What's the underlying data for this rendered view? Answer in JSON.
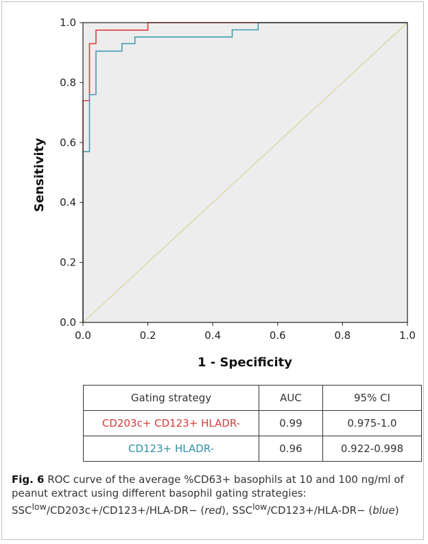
{
  "chart_data": {
    "type": "line",
    "title": "",
    "xlabel": "1 - Specificity",
    "ylabel": "Sensitivity",
    "xlim": [
      0,
      1
    ],
    "ylim": [
      0,
      1
    ],
    "xticks": [
      "0.0",
      "0.2",
      "0.4",
      "0.6",
      "0.8",
      "1.0"
    ],
    "yticks": [
      "0.0",
      "0.2",
      "0.4",
      "0.6",
      "0.8",
      "1.0"
    ],
    "grid": false,
    "plot_background": "#ededed",
    "series": [
      {
        "color": "#e23b3b",
        "x": [
          0,
          0,
          0.02,
          0.02,
          0.04,
          0.04,
          0.2,
          0.2,
          1.0
        ],
        "y": [
          0,
          0.74,
          0.74,
          0.93,
          0.93,
          0.975,
          0.975,
          1.0,
          1.0
        ]
      },
      {
        "color": "#3f9bb2",
        "x": [
          0,
          0,
          0.02,
          0.02,
          0.04,
          0.04,
          0.12,
          0.12,
          0.16,
          0.16,
          0.46,
          0.46,
          0.54,
          0.54,
          1.0
        ],
        "y": [
          0,
          0.57,
          0.57,
          0.76,
          0.76,
          0.905,
          0.905,
          0.93,
          0.93,
          0.952,
          0.952,
          0.976,
          0.976,
          1.0,
          1.0
        ]
      },
      {
        "color": "#d8d49a",
        "x": [
          0,
          1
        ],
        "y": [
          0,
          1
        ]
      }
    ]
  },
  "table": {
    "headers": [
      "Gating strategy",
      "AUC",
      "95% CI"
    ],
    "rows": [
      {
        "strategy": "CD203c+ CD123+ HLADR-",
        "auc": "0.99",
        "ci": "0.975-1.0",
        "color": "#d63a3a"
      },
      {
        "strategy": "CD123+ HLADR-",
        "auc": "0.96",
        "ci": "0.922-0.998",
        "color": "#2f8ea5"
      }
    ]
  },
  "caption": {
    "label": "Fig. 6",
    "text_a": " ROC curve of the average %CD63+ basophils at 10 and 100 ng/ml of peanut extract using different basophil gating strategies: SSC",
    "sup1": "low",
    "text_b": "/CD203c+/CD123+/HLA-DR− (",
    "red_word": "red",
    "text_c": "), SSC",
    "sup2": "low",
    "text_d": "/CD123+/HLA-DR− (",
    "blue_word": "blue",
    "text_e": ")"
  }
}
